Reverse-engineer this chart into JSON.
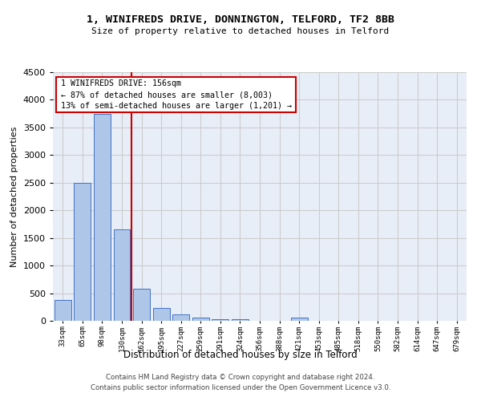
{
  "title1": "1, WINIFREDS DRIVE, DONNINGTON, TELFORD, TF2 8BB",
  "title2": "Size of property relative to detached houses in Telford",
  "xlabel": "Distribution of detached houses by size in Telford",
  "ylabel": "Number of detached properties",
  "footer1": "Contains HM Land Registry data © Crown copyright and database right 2024.",
  "footer2": "Contains public sector information licensed under the Open Government Licence v3.0.",
  "categories": [
    "33sqm",
    "65sqm",
    "98sqm",
    "130sqm",
    "162sqm",
    "195sqm",
    "227sqm",
    "259sqm",
    "291sqm",
    "324sqm",
    "356sqm",
    "388sqm",
    "421sqm",
    "453sqm",
    "485sqm",
    "518sqm",
    "550sqm",
    "582sqm",
    "614sqm",
    "647sqm",
    "679sqm"
  ],
  "values": [
    375,
    2500,
    3750,
    1650,
    580,
    230,
    110,
    60,
    30,
    30,
    0,
    0,
    60,
    0,
    0,
    0,
    0,
    0,
    0,
    0,
    0
  ],
  "bar_color": "#aec6e8",
  "bar_edge_color": "#4472c4",
  "grid_color": "#cccccc",
  "background_color": "#e8eef8",
  "vline_x": 3.5,
  "vline_color": "#cc0000",
  "annotation_line1": "1 WINIFREDS DRIVE: 156sqm",
  "annotation_line2": "← 87% of detached houses are smaller (8,003)",
  "annotation_line3": "13% of semi-detached houses are larger (1,201) →",
  "annotation_box_color": "#cc0000",
  "ylim": [
    0,
    4500
  ],
  "yticks": [
    0,
    500,
    1000,
    1500,
    2000,
    2500,
    3000,
    3500,
    4000,
    4500
  ]
}
